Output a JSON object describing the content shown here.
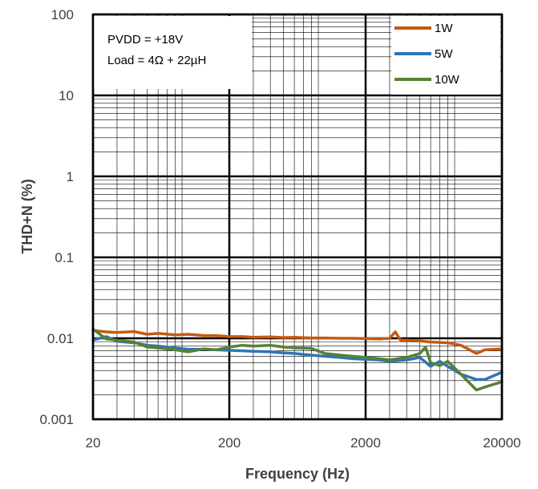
{
  "chart_data": {
    "type": "line",
    "xlabel": "Frequency (Hz)",
    "ylabel": "THD+N (%)",
    "x_scale": "log",
    "y_scale": "log",
    "xlim": [
      20,
      20000
    ],
    "ylim": [
      0.001,
      100
    ],
    "x_ticks": [
      "20",
      "200",
      "2000",
      "20000"
    ],
    "y_ticks": [
      "100",
      "10",
      "1",
      "0.1",
      "0.01",
      "0.001"
    ],
    "grid": true,
    "legend_position": "top-right",
    "annotations": [
      "PVDD = +18V",
      "Load = 4Ω + 22µH"
    ],
    "series": [
      {
        "name": "1W",
        "color": "#C55A11",
        "x": [
          20,
          25,
          30,
          40,
          50,
          60,
          80,
          100,
          130,
          160,
          200,
          250,
          300,
          400,
          500,
          600,
          800,
          1000,
          1300,
          1600,
          2000,
          2500,
          3000,
          3300,
          3600,
          4000,
          5000,
          6000,
          8000,
          10000,
          13000,
          15000,
          20000
        ],
        "y": [
          0.0125,
          0.012,
          0.0118,
          0.0121,
          0.0112,
          0.0115,
          0.011,
          0.0112,
          0.0108,
          0.0108,
          0.0105,
          0.0105,
          0.0103,
          0.0104,
          0.0102,
          0.0103,
          0.0101,
          0.0101,
          0.01,
          0.01,
          0.0099,
          0.0098,
          0.01,
          0.012,
          0.0095,
          0.0095,
          0.0093,
          0.009,
          0.0088,
          0.0082,
          0.0065,
          0.0072,
          0.0074
        ]
      },
      {
        "name": "5W",
        "color": "#2E75B6",
        "x": [
          20,
          25,
          30,
          40,
          50,
          60,
          80,
          100,
          130,
          160,
          200,
          250,
          300,
          400,
          500,
          600,
          800,
          1000,
          1300,
          1600,
          2000,
          2500,
          3000,
          4000,
          5000,
          6000,
          7000,
          8000,
          10000,
          13000,
          15000,
          20000
        ],
        "y": [
          0.0095,
          0.0105,
          0.0092,
          0.0088,
          0.0082,
          0.008,
          0.0076,
          0.0073,
          0.0073,
          0.0072,
          0.0071,
          0.007,
          0.0069,
          0.0068,
          0.0066,
          0.0065,
          0.0062,
          0.006,
          0.0058,
          0.0056,
          0.0055,
          0.0054,
          0.0052,
          0.0054,
          0.0058,
          0.0045,
          0.0052,
          0.0045,
          0.0036,
          0.0031,
          0.0031,
          0.0038
        ]
      },
      {
        "name": "10W",
        "color": "#548235",
        "x": [
          20,
          25,
          30,
          40,
          50,
          60,
          80,
          100,
          130,
          160,
          200,
          250,
          300,
          400,
          500,
          600,
          800,
          1000,
          1300,
          1600,
          2000,
          2500,
          3000,
          4000,
          5000,
          5500,
          6000,
          7000,
          8000,
          10000,
          13000,
          15000,
          20000
        ],
        "y": [
          0.013,
          0.0098,
          0.0095,
          0.009,
          0.0078,
          0.0076,
          0.0072,
          0.0068,
          0.0074,
          0.0072,
          0.0078,
          0.0082,
          0.008,
          0.0082,
          0.0078,
          0.0076,
          0.0075,
          0.0065,
          0.0062,
          0.006,
          0.0058,
          0.0056,
          0.0054,
          0.0058,
          0.0065,
          0.0078,
          0.005,
          0.0046,
          0.0052,
          0.0036,
          0.0023,
          0.0025,
          0.0029
        ]
      }
    ]
  }
}
